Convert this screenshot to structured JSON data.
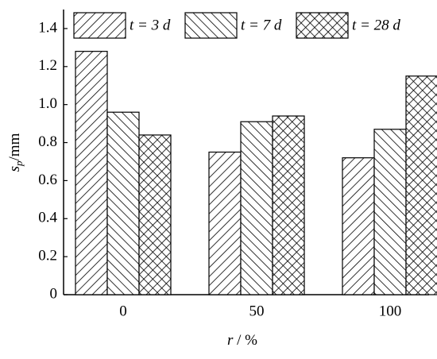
{
  "chart_data": {
    "type": "bar",
    "categories": [
      "0",
      "50",
      "100"
    ],
    "series": [
      {
        "name": "t = 3 d",
        "color": "#000000",
        "hatch": "/",
        "values": [
          1.28,
          0.75,
          0.72
        ]
      },
      {
        "name": "t = 7 d",
        "color": "#000000",
        "hatch": "\\",
        "values": [
          0.96,
          0.91,
          0.87
        ]
      },
      {
        "name": "t = 28 d",
        "color": "#000000",
        "hatch": "x",
        "values": [
          0.84,
          0.94,
          1.15
        ]
      }
    ],
    "ylabel": {
      "symbol": "s",
      "subscript": "p",
      "unit": "/mm"
    },
    "xlabel": {
      "symbol": "r",
      "unit": " / %"
    },
    "ylim": [
      0,
      1.5
    ],
    "yticks": [
      0,
      0.2,
      0.4,
      0.6,
      0.8,
      {
        "value": 1.0,
        "label": "1.0"
      },
      1.2,
      1.4
    ],
    "legend": "top"
  }
}
